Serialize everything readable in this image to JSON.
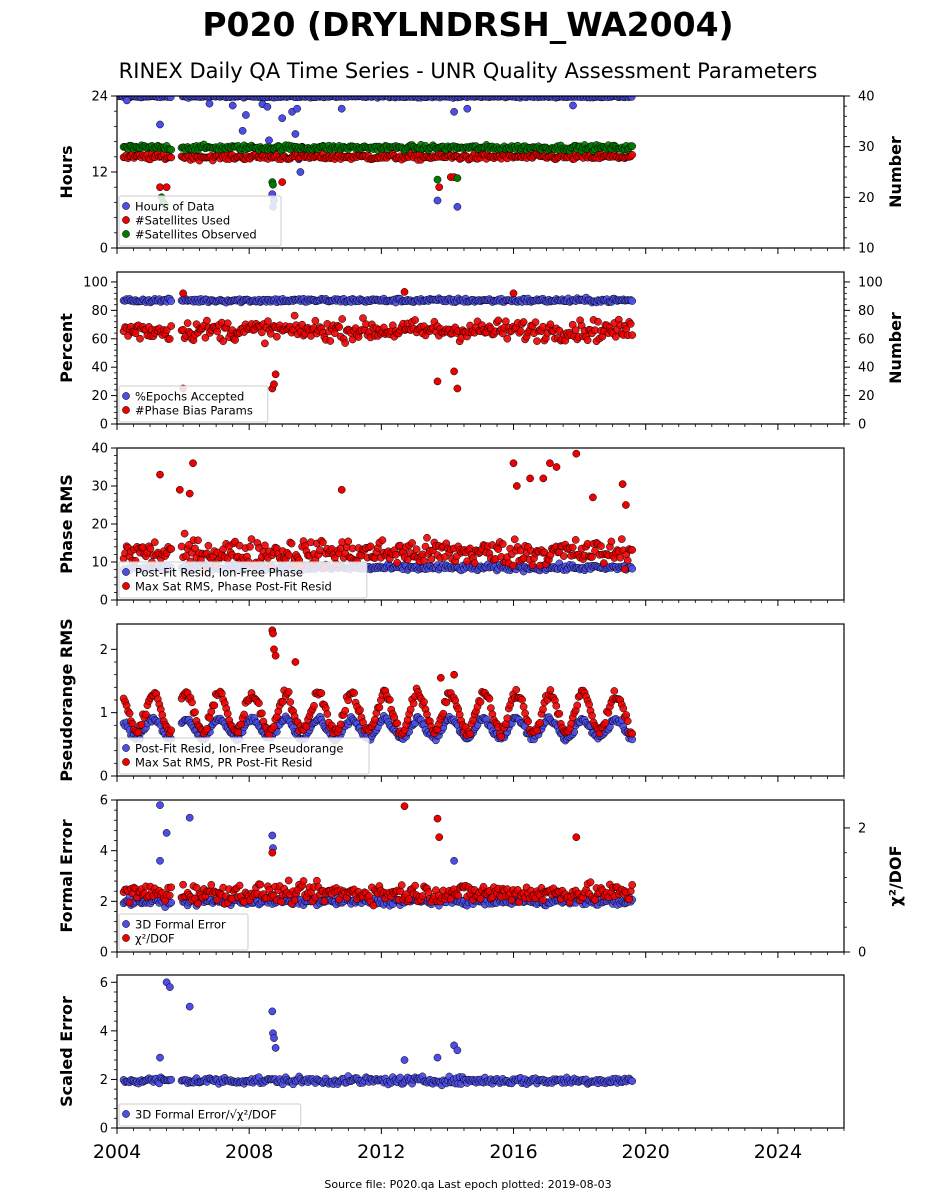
{
  "title": "P020 (DRYLNDRSH_WA2004)",
  "subtitle": "RINEX Daily QA Time Series - UNR Quality Assessment Parameters",
  "footer": "Source file: P020.qa Last epoch plotted: 2019-08-03",
  "colors": {
    "blue": "#4d4de8",
    "red": "#ee0000",
    "green": "#007a00"
  },
  "chart_data": [
    {
      "type": "scatter",
      "ylabel": "Hours",
      "ylabel_right": "Number",
      "xlim": [
        2004,
        2026
      ],
      "ylim": [
        0,
        24
      ],
      "yticks": [
        0,
        12,
        24
      ],
      "ylim_right": [
        10,
        40
      ],
      "yticks_right": [
        10,
        20,
        30,
        40
      ],
      "legend_location": "lower-left",
      "series": [
        {
          "name": "Hours of Data",
          "color": "#4d4de8",
          "axis": "left",
          "x_range": [
            2004.05,
            2019.6
          ],
          "baseline": 23.9,
          "noise": 0.15,
          "outliers": [
            [
              2004.3,
              23.3
            ],
            [
              2005.3,
              19.5
            ],
            [
              2006.8,
              22.8
            ],
            [
              2007.5,
              22.5
            ],
            [
              2007.9,
              21.0
            ],
            [
              2007.8,
              18.5
            ],
            [
              2008.4,
              22.7
            ],
            [
              2008.55,
              22.3
            ],
            [
              2008.6,
              17.0
            ],
            [
              2008.65,
              15.0
            ],
            [
              2008.7,
              8.5
            ],
            [
              2008.72,
              6.5
            ],
            [
              2008.75,
              7.5
            ],
            [
              2008.8,
              14.5
            ],
            [
              2009.0,
              20.5
            ],
            [
              2009.3,
              21.5
            ],
            [
              2009.4,
              18.0
            ],
            [
              2009.45,
              22.0
            ],
            [
              2009.5,
              14.0
            ],
            [
              2009.55,
              12.0
            ],
            [
              2009.6,
              16.0
            ],
            [
              2010.8,
              22.0
            ],
            [
              2013.7,
              7.5
            ],
            [
              2014.3,
              6.5
            ],
            [
              2014.2,
              21.5
            ],
            [
              2014.6,
              22.0
            ],
            [
              2017.8,
              22.5
            ]
          ]
        },
        {
          "name": "#Satellites Used",
          "color": "#ee0000",
          "axis": "right",
          "x_range": [
            2004.2,
            2019.6
          ],
          "baseline": 28.0,
          "noise": 0.6,
          "outliers": [
            [
              2005.3,
              22.0
            ],
            [
              2005.5,
              22.0
            ],
            [
              2009.0,
              23.0
            ],
            [
              2014.1,
              24.0
            ],
            [
              2014.2,
              24.0
            ],
            [
              2013.75,
              22.0
            ]
          ]
        },
        {
          "name": "#Satellites Observed",
          "color": "#007a00",
          "axis": "right",
          "x_range": [
            2004.2,
            2019.6
          ],
          "baseline": 29.8,
          "noise": 0.5,
          "outliers": [
            [
              2005.35,
              20.0
            ],
            [
              2005.4,
              19.0
            ],
            [
              2005.45,
              18.5
            ],
            [
              2008.7,
              23.0
            ],
            [
              2008.72,
              22.5
            ],
            [
              2013.7,
              23.5
            ],
            [
              2014.3,
              23.8
            ]
          ]
        }
      ]
    },
    {
      "type": "scatter",
      "ylabel": "Percent",
      "ylabel_right": "Number",
      "xlim": [
        2004,
        2026
      ],
      "ylim": [
        0,
        107
      ],
      "yticks": [
        0,
        20,
        40,
        60,
        80,
        100
      ],
      "ylim_right": [
        0,
        107
      ],
      "yticks_right": [
        0,
        20,
        40,
        60,
        80,
        100
      ],
      "legend_location": "lower-left",
      "series": [
        {
          "name": "%Epochs Accepted",
          "color": "#4d4de8",
          "axis": "left",
          "x_range": [
            2004.2,
            2019.6
          ],
          "baseline": 87,
          "noise": 1.5,
          "outliers": []
        },
        {
          "name": "#Phase Bias Params",
          "color": "#ee0000",
          "axis": "right",
          "x_range": [
            2004.2,
            2019.6
          ],
          "baseline": 66,
          "noise": 7,
          "outliers": [
            [
              2006.0,
              92.0
            ],
            [
              2008.7,
              25.0
            ],
            [
              2008.75,
              28.0
            ],
            [
              2008.8,
              35.0
            ],
            [
              2006.0,
              25.0
            ],
            [
              2013.7,
              30.0
            ],
            [
              2014.2,
              37.0
            ],
            [
              2014.3,
              25.0
            ],
            [
              2012.7,
              93.0
            ],
            [
              2016.0,
              92.0
            ]
          ]
        }
      ]
    },
    {
      "type": "scatter",
      "ylabel": "Phase RMS",
      "xlim": [
        2004,
        2026
      ],
      "ylim": [
        0,
        40
      ],
      "yticks": [
        0,
        10,
        20,
        30,
        40
      ],
      "legend_location": "lower-left",
      "series": [
        {
          "name": "Post-Fit Resid, Ion-Free Phase",
          "color": "#4d4de8",
          "axis": "left",
          "x_range": [
            2004.2,
            2019.6
          ],
          "baseline": 8.5,
          "noise": 0.8,
          "outliers": []
        },
        {
          "name": "Max Sat RMS, Phase Post-Fit Resid",
          "color": "#ee0000",
          "axis": "left",
          "x_range": [
            2004.2,
            2019.6
          ],
          "baseline": 12.5,
          "noise": 3.5,
          "outliers": [
            [
              2005.3,
              33.0
            ],
            [
              2006.3,
              36.0
            ],
            [
              2005.9,
              29.0
            ],
            [
              2006.2,
              28.0
            ],
            [
              2010.8,
              29.0
            ],
            [
              2016.0,
              36.0
            ],
            [
              2016.5,
              32.0
            ],
            [
              2016.9,
              32.0
            ],
            [
              2017.1,
              36.0
            ],
            [
              2017.3,
              35.0
            ],
            [
              2017.9,
              38.5
            ],
            [
              2018.4,
              27.0
            ],
            [
              2019.3,
              30.5
            ],
            [
              2019.4,
              25.0
            ],
            [
              2016.1,
              30.0
            ]
          ]
        }
      ]
    },
    {
      "type": "scatter",
      "ylabel": "Pseudorange RMS",
      "xlim": [
        2004,
        2026
      ],
      "ylim": [
        0,
        2.4
      ],
      "yticks": [
        0,
        1,
        2
      ],
      "legend_location": "lower-left",
      "series": [
        {
          "name": "Post-Fit Resid, Ion-Free Pseudorange",
          "color": "#4d4de8",
          "axis": "left",
          "x_range": [
            2004.2,
            2019.6
          ],
          "baseline": 0.75,
          "seasonal": 0.15,
          "noise": 0.05,
          "outliers": []
        },
        {
          "name": "Max Sat RMS, PR Post-Fit Resid",
          "color": "#ee0000",
          "axis": "left",
          "x_range": [
            2004.2,
            2019.6
          ],
          "baseline": 1.0,
          "seasonal": 0.3,
          "noise": 0.08,
          "outliers": [
            [
              2008.7,
              2.3
            ],
            [
              2008.72,
              2.25
            ],
            [
              2008.75,
              2.0
            ],
            [
              2008.8,
              1.9
            ],
            [
              2009.4,
              1.8
            ],
            [
              2014.2,
              1.6
            ],
            [
              2013.8,
              1.55
            ]
          ]
        }
      ]
    },
    {
      "type": "scatter",
      "ylabel": "Formal Error",
      "ylabel_right": "χ²/DOF",
      "xlim": [
        2004,
        2026
      ],
      "ylim": [
        0,
        6
      ],
      "yticks": [
        0,
        2,
        4,
        6
      ],
      "ylim_right": [
        0,
        2.45
      ],
      "yticks_right": [
        0,
        2
      ],
      "legend_location": "lower-left",
      "series": [
        {
          "name": "3D Formal Error",
          "color": "#4d4de8",
          "axis": "left",
          "x_range": [
            2004.2,
            2019.6
          ],
          "baseline": 2.0,
          "noise": 0.15,
          "outliers": [
            [
              2005.3,
              5.8
            ],
            [
              2005.5,
              4.7
            ],
            [
              2006.2,
              5.3
            ],
            [
              2008.7,
              4.6
            ],
            [
              2008.72,
              4.1
            ],
            [
              2005.3,
              3.6
            ],
            [
              2014.2,
              3.6
            ]
          ]
        },
        {
          "name": "χ²/DOF",
          "color": "#ee0000",
          "axis": "right",
          "x_range": [
            2004.2,
            2019.6
          ],
          "baseline": 0.95,
          "noise": 0.15,
          "outliers": [
            [
              2012.7,
              2.35
            ],
            [
              2013.7,
              2.15
            ],
            [
              2013.75,
              1.85
            ],
            [
              2017.9,
              1.85
            ],
            [
              2008.7,
              1.6
            ]
          ]
        }
      ]
    },
    {
      "type": "scatter",
      "ylabel": "Scaled Error",
      "xlim": [
        2004,
        2026
      ],
      "xticks": [
        2004,
        2008,
        2012,
        2016,
        2020,
        2024
      ],
      "ylim": [
        0,
        6.3
      ],
      "yticks": [
        0,
        2,
        4,
        6
      ],
      "legend_location": "lower-left",
      "series": [
        {
          "name": "3D Formal Error/√χ²/DOF",
          "color": "#4d4de8",
          "axis": "left",
          "x_range": [
            2004.2,
            2019.6
          ],
          "baseline": 1.95,
          "noise": 0.15,
          "outliers": [
            [
              2005.5,
              6.0
            ],
            [
              2005.6,
              5.8
            ],
            [
              2006.2,
              5.0
            ],
            [
              2008.7,
              4.8
            ],
            [
              2008.72,
              3.9
            ],
            [
              2008.75,
              3.7
            ],
            [
              2008.8,
              3.3
            ],
            [
              2005.3,
              2.9
            ],
            [
              2014.2,
              3.4
            ],
            [
              2014.3,
              3.2
            ],
            [
              2013.7,
              2.9
            ],
            [
              2012.7,
              2.8
            ]
          ]
        }
      ]
    }
  ]
}
